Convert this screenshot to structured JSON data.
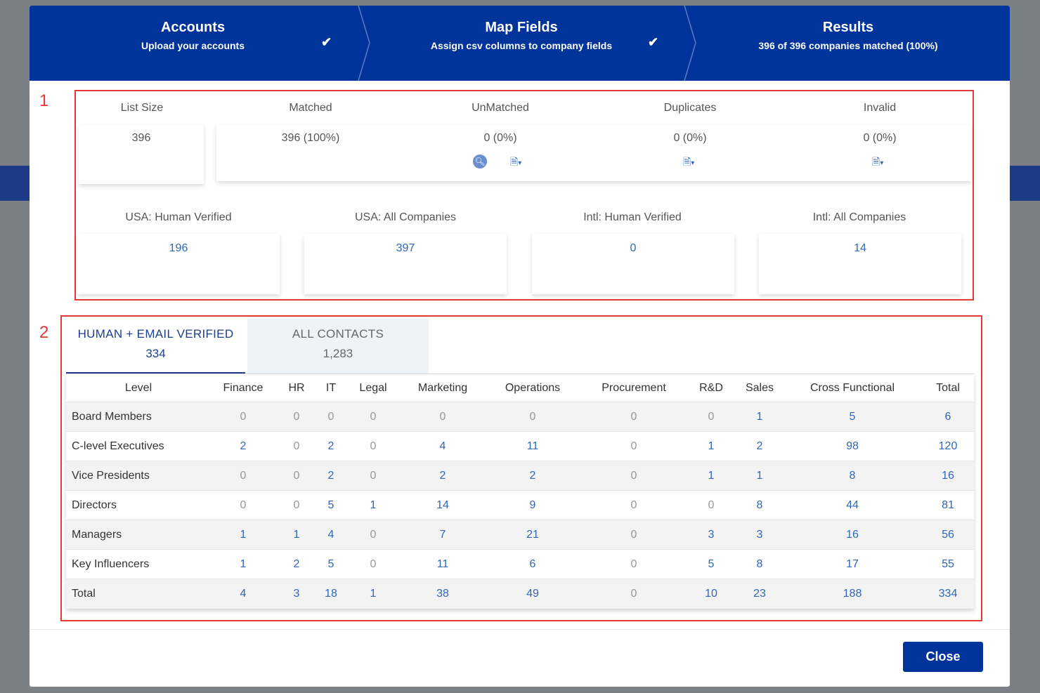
{
  "stepper": {
    "steps": [
      {
        "title": "Accounts",
        "subtitle": "Upload your accounts",
        "done": true
      },
      {
        "title": "Map Fields",
        "subtitle": "Assign csv columns to company fields",
        "done": true
      },
      {
        "title": "Results",
        "subtitle": "396 of 396 companies matched (100%)",
        "done": false
      }
    ],
    "check_glyph": "✔"
  },
  "annotations": {
    "box1": "1",
    "box2": "2"
  },
  "summary": {
    "list_size": {
      "label": "List Size",
      "value": "396"
    },
    "matched": {
      "label": "Matched",
      "value": "396 (100%)"
    },
    "unmatched": {
      "label": "UnMatched",
      "value": "0 (0%)"
    },
    "duplicates": {
      "label": "Duplicates",
      "value": "0 (0%)"
    },
    "invalid": {
      "label": "Invalid",
      "value": "0 (0%)"
    }
  },
  "regions": {
    "usa_hv": {
      "label": "USA: Human Verified",
      "value": "196"
    },
    "usa_all": {
      "label": "USA: All Companies",
      "value": "397"
    },
    "intl_hv": {
      "label": "Intl: Human Verified",
      "value": "0"
    },
    "intl_all": {
      "label": "Intl: All Companies",
      "value": "14"
    }
  },
  "icons": {
    "search": "search-icon",
    "export": "document-export-icon",
    "caret": "caret-down-icon"
  },
  "tabs": [
    {
      "label": "HUMAN + EMAIL VERIFIED",
      "count": "334",
      "active": true
    },
    {
      "label": "ALL CONTACTS",
      "count": "1,283",
      "active": false
    }
  ],
  "table": {
    "headers": [
      "Level",
      "Finance",
      "HR",
      "IT",
      "Legal",
      "Marketing",
      "Operations",
      "Procurement",
      "R&D",
      "Sales",
      "Cross Functional",
      "Total"
    ],
    "rows": [
      [
        "Board Members",
        "0",
        "0",
        "0",
        "0",
        "0",
        "0",
        "0",
        "0",
        "1",
        "5",
        "6"
      ],
      [
        "C-level Executives",
        "2",
        "0",
        "2",
        "0",
        "4",
        "11",
        "0",
        "1",
        "2",
        "98",
        "120"
      ],
      [
        "Vice Presidents",
        "0",
        "0",
        "2",
        "0",
        "2",
        "2",
        "0",
        "1",
        "1",
        "8",
        "16"
      ],
      [
        "Directors",
        "0",
        "0",
        "5",
        "1",
        "14",
        "9",
        "0",
        "0",
        "8",
        "44",
        "81"
      ],
      [
        "Managers",
        "1",
        "1",
        "4",
        "0",
        "7",
        "21",
        "0",
        "3",
        "3",
        "16",
        "56"
      ],
      [
        "Key Influencers",
        "1",
        "2",
        "5",
        "0",
        "11",
        "6",
        "0",
        "5",
        "8",
        "17",
        "55"
      ],
      [
        "Total",
        "4",
        "3",
        "18",
        "1",
        "38",
        "49",
        "0",
        "10",
        "23",
        "188",
        "334"
      ]
    ]
  },
  "footer": {
    "close_label": "Close"
  },
  "colors": {
    "primary": "#00349a",
    "link": "#2f66b8",
    "annotation": "#e53935"
  }
}
